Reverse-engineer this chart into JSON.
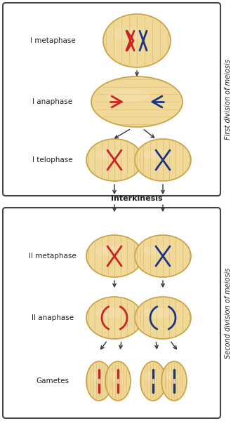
{
  "cell_color": "#f0d898",
  "cell_edge_color": "#c8a040",
  "cell_line_color": "#d4b060",
  "red_chr": "#cc2222",
  "blue_chr": "#1a3580",
  "text_color": "#222222",
  "arrow_color": "#333333",
  "box_color": "#444444",
  "label_fontsize": 7.5,
  "side_label_fontsize": 7.0,
  "interkinesis_fontsize": 8.0,
  "labels": {
    "I_metaphase": "I metaphase",
    "I_anaphase": "I anaphase",
    "I_telophase": "I telophase",
    "interkinesis": "Interkinesis",
    "II_metaphase": "II metaphase",
    "II_anaphase": "II anaphase",
    "gametes": "Gametes"
  },
  "side_labels": {
    "first": "First division of meiosis",
    "second": "Second division of meiosis"
  }
}
